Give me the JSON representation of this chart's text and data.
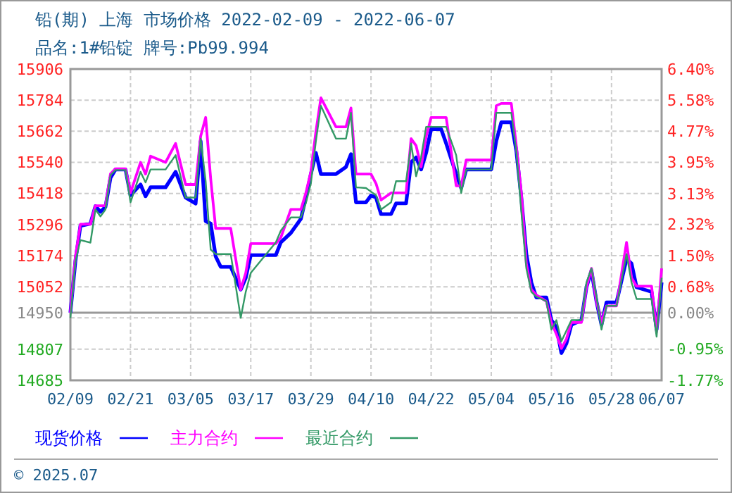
{
  "chart_data": {
    "type": "line",
    "title": "铅(期) 上海 市场价格 2022-02-09 - 2022-06-07",
    "subtitle": "品名:1#铅锭 牌号:Pb99.994",
    "annotations": [
      "© 2025.07"
    ],
    "x": [
      "--02-09",
      "--02-10",
      "--02-11",
      "--02-13",
      "--02-14",
      "--02-15",
      "--02-16",
      "--02-17",
      "--02-18",
      "--02-20",
      "--02-21",
      "--02-23",
      "--02-24",
      "--02-25",
      "--02-28",
      "--03-02",
      "--03-04",
      "--03-06",
      "--03-07",
      "--03-08",
      "--03-09",
      "--03-10",
      "--03-11",
      "--03-13",
      "--03-15",
      "--03-16",
      "--03-17",
      "--03-22",
      "--03-23",
      "--03-25",
      "--03-27",
      "--03-28",
      "--03-29",
      "--03-30",
      "--03-31",
      "--04-03",
      "--04-05",
      "--04-06",
      "--04-07",
      "--04-09",
      "--04-10",
      "--04-11",
      "--04-12",
      "--04-14",
      "--04-15",
      "--04-17",
      "--04-18",
      "--04-19",
      "--04-20",
      "--04-21",
      "--04-22",
      "--04-24",
      "--04-25",
      "--04-27",
      "--04-28",
      "--04-29",
      "--05-04",
      "--05-05",
      "--05-06",
      "--05-08",
      "--05-09",
      "--05-10",
      "--05-11",
      "--05-12",
      "--05-13",
      "--05-15",
      "--05-16",
      "--05-17",
      "--05-18",
      "--05-19",
      "--05-20",
      "--05-22",
      "--05-23",
      "--05-24",
      "--05-25",
      "--05-26",
      "--05-27",
      "--05-29",
      "--05-31",
      "--06-01",
      "--06-02",
      "--06-05",
      "--06-06",
      "--06-07"
    ],
    "series": [
      {
        "name": "现货价格",
        "color": "#0000ff",
        "values": [
          14950,
          15152,
          15291,
          15300,
          15368,
          15346,
          15365,
          15479,
          15512,
          15512,
          15411,
          15453,
          15407,
          15442,
          15442,
          15503,
          15402,
          15378,
          15623,
          15309,
          15300,
          15171,
          15130,
          15130,
          15041,
          15087,
          15176,
          15176,
          15226,
          15263,
          15318,
          15402,
          15494,
          15577,
          15494,
          15494,
          15522,
          15572,
          15383,
          15383,
          15410,
          15402,
          15337,
          15337,
          15379,
          15379,
          15540,
          15559,
          15512,
          15577,
          15670,
          15670,
          15614,
          15494,
          15439,
          15512,
          15512,
          15623,
          15697,
          15697,
          15586,
          15402,
          15180,
          15069,
          15010,
          15010,
          14921,
          14893,
          14792,
          14829,
          14903,
          14921,
          15050,
          15115,
          14995,
          14903,
          14991,
          14991,
          15161,
          15143,
          15050,
          15032,
          14884,
          15069
        ]
      },
      {
        "name": "主力合约",
        "color": "#ff00ff",
        "values": [
          14950,
          15170,
          15297,
          15297,
          15370,
          15370,
          15370,
          15495,
          15515,
          15515,
          15420,
          15540,
          15494,
          15564,
          15540,
          15614,
          15453,
          15453,
          15642,
          15716,
          15476,
          15281,
          15281,
          15281,
          15041,
          15106,
          15221,
          15221,
          15245,
          15355,
          15355,
          15420,
          15503,
          15660,
          15793,
          15679,
          15679,
          15753,
          15494,
          15494,
          15494,
          15457,
          15392,
          15420,
          15420,
          15420,
          15633,
          15605,
          15522,
          15640,
          15716,
          15716,
          15716,
          15448,
          15448,
          15549,
          15549,
          15762,
          15771,
          15771,
          15605,
          15420,
          15143,
          15041,
          15020,
          14995,
          14912,
          14866,
          14810,
          14847,
          14912,
          14912,
          15050,
          15124,
          14995,
          14912,
          14977,
          14977,
          15226,
          15087,
          15054,
          15054,
          14875,
          15124
        ]
      },
      {
        "name": "最近合约",
        "color": "#339966",
        "values": [
          14930,
          15150,
          15235,
          15225,
          15355,
          15328,
          15355,
          15490,
          15510,
          15510,
          15383,
          15503,
          15461,
          15512,
          15512,
          15568,
          15402,
          15402,
          15633,
          15466,
          15198,
          15180,
          15180,
          15180,
          14930,
          15032,
          15106,
          15226,
          15272,
          15324,
          15324,
          15380,
          15457,
          15623,
          15762,
          15633,
          15633,
          15734,
          15442,
          15439,
          15425,
          15411,
          15355,
          15383,
          15466,
          15466,
          15614,
          15485,
          15560,
          15679,
          15679,
          15679,
          15679,
          15568,
          15420,
          15512,
          15512,
          15734,
          15734,
          15734,
          15586,
          15346,
          15124,
          15032,
          15013,
          14995,
          14884,
          14921,
          14838,
          14880,
          14921,
          14921,
          15069,
          15124,
          15013,
          14884,
          14977,
          14977,
          15180,
          15069,
          15004,
          15004,
          14856,
          15087
        ]
      }
    ],
    "xlim": [
      "--02-09",
      "--06-07"
    ],
    "xticks": [
      {
        "value": "--02-09",
        "label": "02/09"
      },
      {
        "value": "--02-21",
        "label": "02/21"
      },
      {
        "value": "--03-05",
        "label": "03/05"
      },
      {
        "value": "--03-17",
        "label": "03/17"
      },
      {
        "value": "--03-29",
        "label": "03/29"
      },
      {
        "value": "--04-10",
        "label": "04/10"
      },
      {
        "value": "--04-22",
        "label": "04/22"
      },
      {
        "value": "--05-04",
        "label": "05/04"
      },
      {
        "value": "--05-16",
        "label": "05/16"
      },
      {
        "value": "--05-28",
        "label": "05/28"
      },
      {
        "value": "--06-07",
        "label": "06/07"
      }
    ],
    "ylim": [
      14685,
      15906
    ],
    "yticks": [
      15906,
      15784,
      15662,
      15540,
      15418,
      15296,
      15174,
      15052,
      14950,
      {
        "value": 14930,
        "label": null
      },
      14807,
      14685
    ],
    "y2lim": [
      -1.77,
      6.4
    ],
    "y2ticks": [
      {
        "value": 6.4,
        "label": "6.40%"
      },
      {
        "value": 5.58,
        "label": "5.58%"
      },
      {
        "value": 4.77,
        "label": "4.77%"
      },
      {
        "value": 3.95,
        "label": "3.95%"
      },
      {
        "value": 3.13,
        "label": "3.13%"
      },
      {
        "value": 2.32,
        "label": "2.32%"
      },
      {
        "value": 1.5,
        "label": "1.50%"
      },
      {
        "value": 0.68,
        "label": "0.68%"
      },
      {
        "value": 0,
        "label": "0.00%"
      },
      {
        "value": -0.95,
        "label": "-0.95%"
      },
      {
        "value": -1.77,
        "label": "-1.77%"
      }
    ],
    "ref_lines": [
      {
        "axis": "y",
        "value": 14950,
        "color": "#999999"
      }
    ],
    "grid": true,
    "legend": "bottom"
  }
}
